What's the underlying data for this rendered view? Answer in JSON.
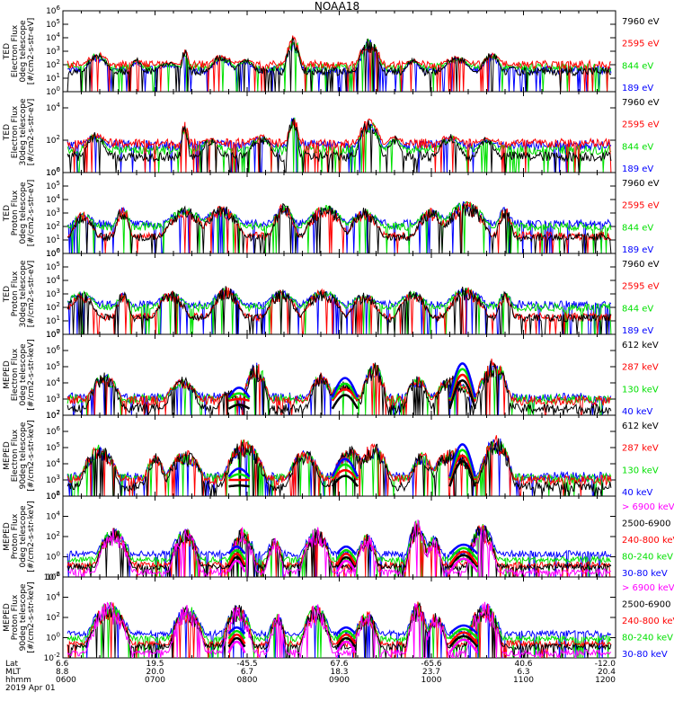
{
  "title": "NOAA18",
  "colors": {
    "black": "#000000",
    "red": "#ff0000",
    "green": "#00e000",
    "blue": "#0000ff",
    "magenta": "#ff00ff"
  },
  "chart_data": [
    {
      "type": "line",
      "ylabel": [
        "TED",
        "Electron Flux",
        "0deg telescope",
        "[#/cm2-s-str-eV]"
      ],
      "ylim": [
        1,
        1000000
      ],
      "yscale": "log",
      "yticks": [
        "10^0",
        "10^1",
        "10^2",
        "10^3",
        "10^4",
        "10^5",
        "10^6"
      ],
      "series": [
        {
          "name": "7960 eV",
          "color": "#000000",
          "level": 1.5
        },
        {
          "name": "2595 eV",
          "color": "#ff0000",
          "level": 2.0
        },
        {
          "name": "844 eV",
          "color": "#00e000",
          "level": 1.8
        },
        {
          "name": "189 eV",
          "color": "#0000ff",
          "level": 1.6
        }
      ],
      "bursts": [
        {
          "t": 0.075,
          "w": 0.03,
          "peak": 3.0
        },
        {
          "t": 0.16,
          "w": 0.015,
          "peak": 2.5
        },
        {
          "t": 0.23,
          "w": 0.03,
          "peak": 2.2
        },
        {
          "t": 0.265,
          "w": 0.01,
          "peak": 3.3
        },
        {
          "t": 0.345,
          "w": 0.03,
          "peak": 2.8
        },
        {
          "t": 0.395,
          "w": 0.025,
          "peak": 2.5
        },
        {
          "t": 0.5,
          "w": 0.02,
          "peak": 4.3
        },
        {
          "t": 0.665,
          "w": 0.03,
          "peak": 4.0
        },
        {
          "t": 0.76,
          "w": 0.02,
          "peak": 2.5
        },
        {
          "t": 0.855,
          "w": 0.035,
          "peak": 2.7
        },
        {
          "t": 0.93,
          "w": 0.025,
          "peak": 3.0
        },
        {
          "t": 0.975,
          "w": 0.01,
          "peak": 2.0
        }
      ]
    },
    {
      "type": "line",
      "ylabel": [
        "TED",
        "Electron Flux",
        "30deg telescope",
        "[#/cm2-s-str-eV]"
      ],
      "ylim": [
        1,
        100000
      ],
      "yscale": "log",
      "yticks": [
        "10^0",
        "10^2",
        "10^4"
      ],
      "series": [
        {
          "name": "7960 eV",
          "color": "#000000",
          "level": 1.0
        },
        {
          "name": "2595 eV",
          "color": "#ff0000",
          "level": 1.8
        },
        {
          "name": "844 eV",
          "color": "#00e000",
          "level": 1.4
        },
        {
          "name": "189 eV",
          "color": "#0000ff",
          "level": 1.7
        }
      ],
      "bursts": [
        {
          "t": 0.07,
          "w": 0.03,
          "peak": 2.5
        },
        {
          "t": 0.265,
          "w": 0.01,
          "peak": 3.2
        },
        {
          "t": 0.32,
          "w": 0.025,
          "peak": 2.2
        },
        {
          "t": 0.43,
          "w": 0.03,
          "peak": 2.4
        },
        {
          "t": 0.5,
          "w": 0.015,
          "peak": 3.6
        },
        {
          "t": 0.665,
          "w": 0.03,
          "peak": 3.4
        },
        {
          "t": 0.72,
          "w": 0.02,
          "peak": 2.3
        },
        {
          "t": 0.84,
          "w": 0.03,
          "peak": 2.4
        },
        {
          "t": 0.92,
          "w": 0.025,
          "peak": 2.2
        }
      ]
    },
    {
      "type": "line",
      "ylabel": [
        "TED",
        "Proton Flux",
        "0deg telescope",
        "[#/cm2-s-str-eV]"
      ],
      "ylim": [
        1,
        1000000
      ],
      "yscale": "log",
      "yticks": [
        "10^0",
        "10^1",
        "10^2",
        "10^3",
        "10^4",
        "10^5",
        "10^6"
      ],
      "series": [
        {
          "name": "7960 eV",
          "color": "#000000",
          "level": 1.2
        },
        {
          "name": "2595 eV",
          "color": "#ff0000",
          "level": 1.3
        },
        {
          "name": "844 eV",
          "color": "#00e000",
          "level": 2.0
        },
        {
          "name": "189 eV",
          "color": "#0000ff",
          "level": 2.2
        }
      ],
      "bursts": [
        {
          "t": 0.045,
          "w": 0.03,
          "peak": 3.2
        },
        {
          "t": 0.13,
          "w": 0.02,
          "peak": 3.6
        },
        {
          "t": 0.265,
          "w": 0.05,
          "peak": 3.5
        },
        {
          "t": 0.345,
          "w": 0.05,
          "peak": 3.6
        },
        {
          "t": 0.48,
          "w": 0.03,
          "peak": 3.8
        },
        {
          "t": 0.57,
          "w": 0.05,
          "peak": 3.7
        },
        {
          "t": 0.655,
          "w": 0.04,
          "peak": 3.4
        },
        {
          "t": 0.8,
          "w": 0.04,
          "peak": 3.4
        },
        {
          "t": 0.875,
          "w": 0.055,
          "peak": 4.0
        },
        {
          "t": 0.96,
          "w": 0.02,
          "peak": 3.6
        }
      ]
    },
    {
      "type": "line",
      "ylabel": [
        "TED",
        "Proton Flux",
        "30deg telescope",
        "[#/cm2-s-str-eV]"
      ],
      "ylim": [
        1,
        1000000
      ],
      "yscale": "log",
      "yticks": [
        "10^0",
        "10^1",
        "10^2",
        "10^3",
        "10^4",
        "10^5",
        "10^6"
      ],
      "series": [
        {
          "name": "7960 eV",
          "color": "#000000",
          "level": 1.2
        },
        {
          "name": "2595 eV",
          "color": "#ff0000",
          "level": 1.3
        },
        {
          "name": "844 eV",
          "color": "#00e000",
          "level": 2.0
        },
        {
          "name": "189 eV",
          "color": "#0000ff",
          "level": 2.2
        }
      ],
      "bursts": [
        {
          "t": 0.04,
          "w": 0.04,
          "peak": 3.3
        },
        {
          "t": 0.13,
          "w": 0.02,
          "peak": 3.2
        },
        {
          "t": 0.235,
          "w": 0.04,
          "peak": 3.3
        },
        {
          "t": 0.355,
          "w": 0.04,
          "peak": 3.6
        },
        {
          "t": 0.475,
          "w": 0.04,
          "peak": 3.4
        },
        {
          "t": 0.565,
          "w": 0.05,
          "peak": 3.4
        },
        {
          "t": 0.655,
          "w": 0.04,
          "peak": 3.1
        },
        {
          "t": 0.76,
          "w": 0.04,
          "peak": 3.3
        },
        {
          "t": 0.875,
          "w": 0.05,
          "peak": 3.6
        },
        {
          "t": 0.96,
          "w": 0.02,
          "peak": 3.3
        }
      ]
    },
    {
      "type": "line",
      "ylabel": [
        "MEPED",
        "Electron Flux",
        "0deg telescope",
        "[#/cm2-s-str-keV]"
      ],
      "ylim": [
        100,
        10000000
      ],
      "yscale": "log",
      "yticks": [
        "10^2",
        "10^3",
        "10^4",
        "10^5",
        "10^6",
        "10^7"
      ],
      "series": [
        {
          "name": "612 keV",
          "color": "#000000",
          "level": 2.4
        },
        {
          "name": "287 keV",
          "color": "#ff0000",
          "level": 2.9
        },
        {
          "name": "130 keV",
          "color": "#00e000",
          "level": 3.0
        },
        {
          "name": "40 keV",
          "color": "#0000ff",
          "level": 3.1
        }
      ],
      "bursts": [
        {
          "t": 0.09,
          "w": 0.04,
          "peak": 4.7
        },
        {
          "t": 0.26,
          "w": 0.04,
          "peak": 4.4
        },
        {
          "t": 0.36,
          "w": 0.025,
          "peak": 3.6
        },
        {
          "t": 0.42,
          "w": 0.03,
          "peak": 5.4
        },
        {
          "t": 0.56,
          "w": 0.03,
          "peak": 4.7
        },
        {
          "t": 0.61,
          "w": 0.04,
          "peak": 4.1
        },
        {
          "t": 0.675,
          "w": 0.03,
          "peak": 5.4
        },
        {
          "t": 0.77,
          "w": 0.03,
          "peak": 4.5
        },
        {
          "t": 0.845,
          "w": 0.045,
          "peak": 4.5
        },
        {
          "t": 0.935,
          "w": 0.04,
          "peak": 5.6
        }
      ]
    },
    {
      "type": "line",
      "ylabel": [
        "MEPED",
        "Electron Flux",
        "90deg telescope",
        "[#/cm2-s-str-keV]"
      ],
      "ylim": [
        100,
        10000000
      ],
      "yscale": "log",
      "yticks": [
        "10^2",
        "10^3",
        "10^4",
        "10^5",
        "10^6",
        "10^7"
      ],
      "series": [
        {
          "name": "612 keV",
          "color": "#000000",
          "level": 2.6
        },
        {
          "name": "287 keV",
          "color": "#ff0000",
          "level": 3.0
        },
        {
          "name": "130 keV",
          "color": "#00e000",
          "level": 3.1
        },
        {
          "name": "40 keV",
          "color": "#0000ff",
          "level": 3.2
        }
      ],
      "bursts": [
        {
          "t": 0.08,
          "w": 0.045,
          "peak": 5.3
        },
        {
          "t": 0.2,
          "w": 0.025,
          "peak": 4.7
        },
        {
          "t": 0.265,
          "w": 0.045,
          "peak": 4.9
        },
        {
          "t": 0.395,
          "w": 0.05,
          "peak": 5.6
        },
        {
          "t": 0.525,
          "w": 0.04,
          "peak": 5.0
        },
        {
          "t": 0.625,
          "w": 0.045,
          "peak": 5.1
        },
        {
          "t": 0.675,
          "w": 0.04,
          "peak": 5.4
        },
        {
          "t": 0.78,
          "w": 0.03,
          "peak": 4.8
        },
        {
          "t": 0.845,
          "w": 0.05,
          "peak": 5.1
        },
        {
          "t": 0.94,
          "w": 0.04,
          "peak": 5.9
        }
      ]
    },
    {
      "type": "line",
      "ylabel": [
        "MEPED",
        "Proton Flux",
        "0deg telescope",
        "[#/cm2-s-str-keV]"
      ],
      "ylim": [
        0.01,
        1000000
      ],
      "yscale": "log",
      "yticks": [
        "10^-2",
        "10^0",
        "10^2",
        "10^4",
        "10^6"
      ],
      "series": [
        {
          "name": "> 6900 keV",
          "color": "#ff00ff",
          "level": -1.5
        },
        {
          "name": "2500-6900",
          "color": "#000000",
          "level": -1.0
        },
        {
          "name": "240-800 keV",
          "color": "#ff0000",
          "level": -0.8
        },
        {
          "name": "80-240 keV",
          "color": "#00e000",
          "level": -0.3
        },
        {
          "name": "30-80 keV",
          "color": "#0000ff",
          "level": 0.3
        }
      ],
      "bursts": [
        {
          "t": 0.11,
          "w": 0.04,
          "peak": 3.0
        },
        {
          "t": 0.265,
          "w": 0.035,
          "peak": 3.0
        },
        {
          "t": 0.39,
          "w": 0.03,
          "peak": 3.0
        },
        {
          "t": 0.46,
          "w": 0.02,
          "peak": 2.0
        },
        {
          "t": 0.55,
          "w": 0.035,
          "peak": 3.0
        },
        {
          "t": 0.66,
          "w": 0.025,
          "peak": 2.4
        },
        {
          "t": 0.77,
          "w": 0.025,
          "peak": 3.8
        },
        {
          "t": 0.805,
          "w": 0.02,
          "peak": 2.3
        },
        {
          "t": 0.91,
          "w": 0.035,
          "peak": 3.4
        }
      ]
    },
    {
      "type": "line",
      "ylabel": [
        "MEPED",
        "Proton Flux",
        "90deg telescope",
        "[#/cm2-s-str-keV]"
      ],
      "ylim": [
        0.01,
        1000000
      ],
      "yscale": "log",
      "yticks": [
        "10^-2",
        "10^0",
        "10^2",
        "10^4",
        "10^6"
      ],
      "series": [
        {
          "name": "> 6900 keV",
          "color": "#ff00ff",
          "level": -1.5
        },
        {
          "name": "2500-6900",
          "color": "#000000",
          "level": -0.9
        },
        {
          "name": "240-800 keV",
          "color": "#ff0000",
          "level": -0.6
        },
        {
          "name": "80-240 keV",
          "color": "#00e000",
          "level": -0.1
        },
        {
          "name": "30-80 keV",
          "color": "#0000ff",
          "level": 0.4
        }
      ],
      "bursts": [
        {
          "t": 0.1,
          "w": 0.05,
          "peak": 3.7
        },
        {
          "t": 0.27,
          "w": 0.04,
          "peak": 3.4
        },
        {
          "t": 0.38,
          "w": 0.035,
          "peak": 3.4
        },
        {
          "t": 0.465,
          "w": 0.02,
          "peak": 2.5
        },
        {
          "t": 0.55,
          "w": 0.035,
          "peak": 3.4
        },
        {
          "t": 0.66,
          "w": 0.03,
          "peak": 2.7
        },
        {
          "t": 0.77,
          "w": 0.025,
          "peak": 3.7
        },
        {
          "t": 0.81,
          "w": 0.025,
          "peak": 2.6
        },
        {
          "t": 0.915,
          "w": 0.04,
          "peak": 3.7
        }
      ]
    }
  ],
  "arcs": [
    {
      "panels": [
        4,
        5
      ],
      "t0": 0.36,
      "t1": 0.405,
      "peak": 3.7
    },
    {
      "panels": [
        4,
        5
      ],
      "t0": 0.585,
      "t1": 0.64,
      "peak": 4.3
    },
    {
      "panels": [
        4,
        5
      ],
      "t0": 0.84,
      "t1": 0.895,
      "peak": 5.2
    },
    {
      "panels": [
        6,
        7
      ],
      "t0": 0.36,
      "t1": 0.395,
      "peak": 1.0
    },
    {
      "panels": [
        6,
        7
      ],
      "t0": 0.595,
      "t1": 0.635,
      "peak": 1.0
    },
    {
      "panels": [
        6,
        7
      ],
      "t0": 0.84,
      "t1": 0.9,
      "peak": 1.2
    }
  ],
  "xaxis": {
    "row_labels": [
      "Lat",
      "MLT",
      "hhmm"
    ],
    "ticks": [
      {
        "t": 0.0,
        "lat": "6.6",
        "mlt": "8.8",
        "hhmm": "0600"
      },
      {
        "t": 0.2,
        "lat": "19.5",
        "mlt": "20.0",
        "hhmm": "0700"
      },
      {
        "t": 0.4,
        "lat": "-45.5",
        "mlt": "6.7",
        "hhmm": "0800"
      },
      {
        "t": 0.6,
        "lat": "67.6",
        "mlt": "18.3",
        "hhmm": "0900"
      },
      {
        "t": 0.8,
        "lat": "-65.6",
        "mlt": "23.7",
        "hhmm": "1000"
      },
      {
        "t": 1.0,
        "lat": "40.6",
        "mlt": "6.3",
        "hhmm": "1100"
      },
      {
        "t": 1.2,
        "lat": "-12.0",
        "mlt": "20.4",
        "hhmm": "1200"
      }
    ],
    "date": "2019 Apr 01"
  }
}
